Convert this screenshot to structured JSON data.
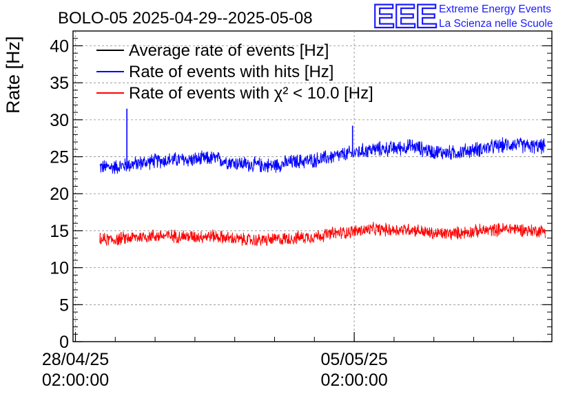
{
  "logo": {
    "mark": "EEE",
    "line1": "Extreme Energy Events",
    "line2": "La Scienza nelle Scuole"
  },
  "chart_data": {
    "type": "line",
    "title": "BOLO-05 2025-04-29--2025-05-08",
    "ylabel": "Rate [Hz]",
    "xlabel": "",
    "ylim": [
      0,
      42
    ],
    "yticks": [
      0,
      5,
      10,
      15,
      20,
      25,
      30,
      35,
      40
    ],
    "xrange": [
      "2025-04-28 00:33:00",
      "2025-05-10 01:07:00"
    ],
    "xticks": [
      {
        "value": "2025-04-28 02:00:00",
        "line1": "28/04/25",
        "line2": "02:00:00"
      },
      {
        "value": "2025-05-05 02:00:00",
        "line1": "05/05/25",
        "line2": "02:00:00"
      }
    ],
    "grid": true,
    "legend_position": "top-left",
    "series": [
      {
        "name": "Average rate of events [Hz]",
        "color": "#000000",
        "x": [],
        "y": []
      },
      {
        "name": "Rate of events with hits [Hz]",
        "color": "#0000ff",
        "spikes": [
          {
            "x": "2025-04-29 09:00:00",
            "y": 31.5
          },
          {
            "x": "2025-05-05 01:00:00",
            "y": 29.2
          }
        ],
        "x": [
          "2025-04-29 01:00:00",
          "2025-04-29 13:00:00",
          "2025-04-30 01:00:00",
          "2025-04-30 13:00:00",
          "2025-05-01 01:00:00",
          "2025-05-01 13:00:00",
          "2025-05-02 01:00:00",
          "2025-05-02 13:00:00",
          "2025-05-03 01:00:00",
          "2025-05-03 13:00:00",
          "2025-05-04 01:00:00",
          "2025-05-04 13:00:00",
          "2025-05-05 01:00:00",
          "2025-05-05 13:00:00",
          "2025-05-06 01:00:00",
          "2025-05-06 13:00:00",
          "2025-05-07 01:00:00",
          "2025-05-07 13:00:00",
          "2025-05-08 01:00:00",
          "2025-05-08 13:00:00",
          "2025-05-09 01:00:00",
          "2025-05-09 13:00:00"
        ],
        "y": [
          23.6,
          24.0,
          24.4,
          24.6,
          24.6,
          24.8,
          24.2,
          23.9,
          23.8,
          24.3,
          24.5,
          25.0,
          25.5,
          26.0,
          26.1,
          26.4,
          25.7,
          25.5,
          25.9,
          26.3,
          26.7,
          26.4
        ],
        "noise": 1.1
      },
      {
        "name": "Rate of events with χ² < 10.0 [Hz]",
        "color": "#ff0000",
        "x": [
          "2025-04-29 01:00:00",
          "2025-04-29 13:00:00",
          "2025-04-30 01:00:00",
          "2025-04-30 13:00:00",
          "2025-05-01 01:00:00",
          "2025-05-01 13:00:00",
          "2025-05-02 01:00:00",
          "2025-05-02 13:00:00",
          "2025-05-03 01:00:00",
          "2025-05-03 13:00:00",
          "2025-05-04 01:00:00",
          "2025-05-04 13:00:00",
          "2025-05-05 01:00:00",
          "2025-05-05 13:00:00",
          "2025-05-06 01:00:00",
          "2025-05-06 13:00:00",
          "2025-05-07 01:00:00",
          "2025-05-07 13:00:00",
          "2025-05-08 01:00:00",
          "2025-05-08 13:00:00",
          "2025-05-09 01:00:00",
          "2025-05-09 13:00:00"
        ],
        "y": [
          13.8,
          14.1,
          14.3,
          14.3,
          14.2,
          14.3,
          13.9,
          13.7,
          13.8,
          14.0,
          14.2,
          14.6,
          14.9,
          15.2,
          15.1,
          15.2,
          14.6,
          14.6,
          14.9,
          15.1,
          15.3,
          15.0
        ],
        "noise": 0.95
      }
    ]
  }
}
